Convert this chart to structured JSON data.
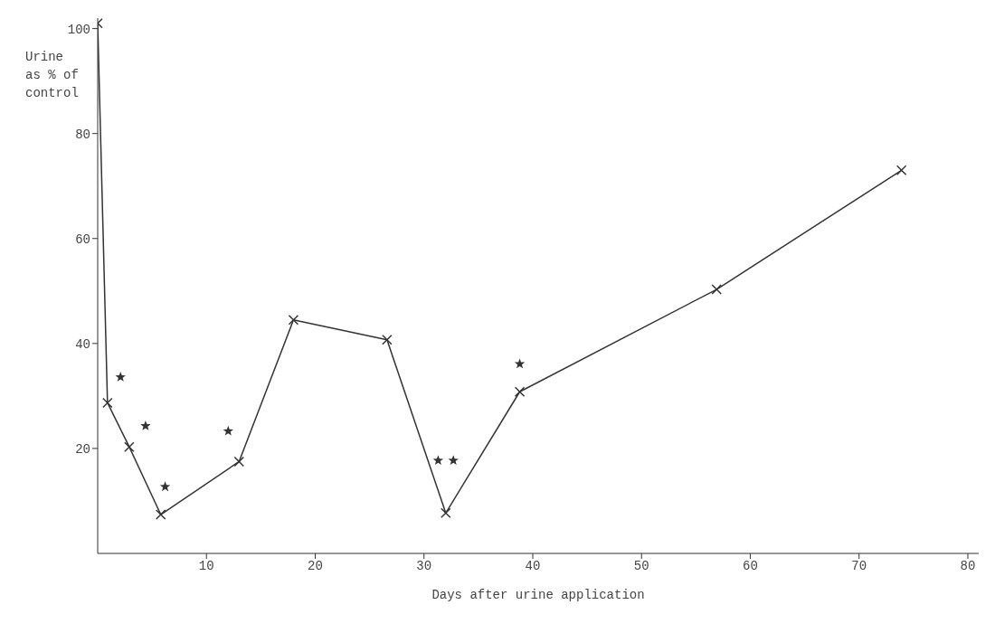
{
  "chart_data": {
    "type": "line",
    "xlabel": "Days after urine application",
    "ylabel": "Urine as % of control",
    "xlim": [
      0,
      81
    ],
    "xticks": [
      10,
      20,
      30,
      40,
      50,
      60,
      70,
      80
    ],
    "ylim": [
      0,
      102
    ],
    "yticks": [
      20,
      40,
      60,
      80,
      100
    ],
    "grid": false,
    "series": [
      {
        "color": "#333333",
        "marker": "cross",
        "x": [
          0,
          0.9,
          2.9,
          5.8,
          13,
          18,
          26.6,
          32,
          38.8,
          56.9,
          73.9
        ],
        "values": [
          101,
          28.7,
          20.3,
          7.4,
          17.5,
          44.5,
          40.7,
          7.7,
          30.8,
          50.3,
          73
        ]
      },
      {
        "type": "scatter",
        "color": "#333333",
        "marker": "star",
        "x": [
          2.1,
          4.4,
          6.2,
          12,
          31.3,
          32.7,
          38.8
        ],
        "values": [
          33.6,
          24.3,
          12.7,
          23.3,
          17.7,
          17.7,
          36.1
        ]
      }
    ]
  }
}
